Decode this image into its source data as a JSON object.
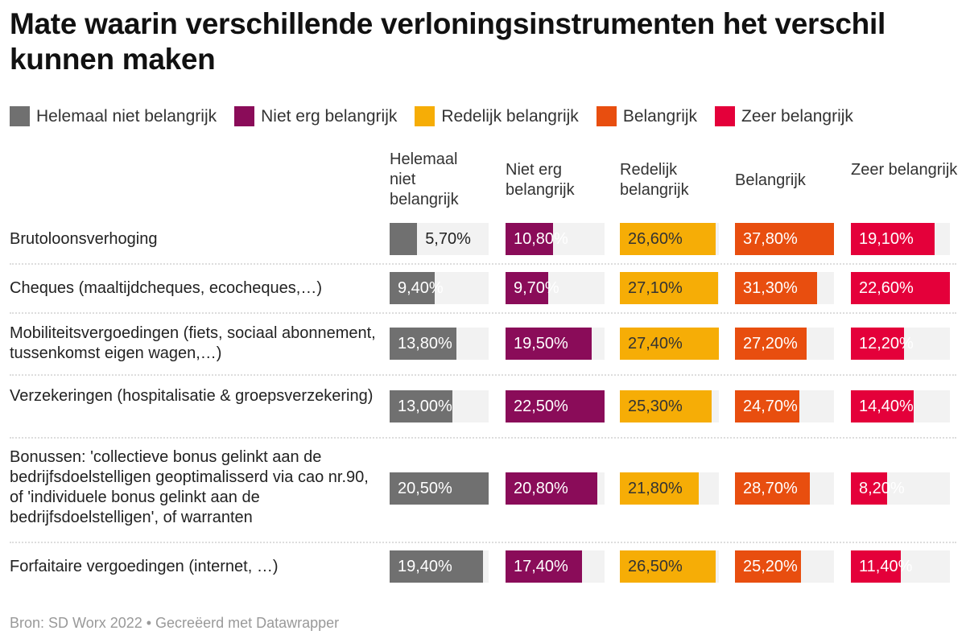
{
  "title": "Mate waarin verschillende verloningsinstrumenten het verschil kunnen maken",
  "legend": [
    {
      "label": "Helemaal niet belangrijk",
      "color": "#707070"
    },
    {
      "label": "Niet erg belangrijk",
      "color": "#8a0c59"
    },
    {
      "label": "Redelijk belangrijk",
      "color": "#f6ad06"
    },
    {
      "label": "Belangrijk",
      "color": "#e84e0f"
    },
    {
      "label": "Zeer belangrijk",
      "color": "#e4003a"
    }
  ],
  "chart_data": {
    "type": "table",
    "columns": [
      "Helemaal niet belangrijk",
      "Niet erg belangrijk",
      "Redelijk belangrijk",
      "Belangrijk",
      "Zeer belangrijk"
    ],
    "rows": [
      {
        "label": "Brutoloonsverhoging",
        "values": [
          5.7,
          10.8,
          26.6,
          37.8,
          19.1
        ],
        "texts": [
          "5,70%",
          "10,80%",
          "26,60%",
          "37,80%",
          "19,10%"
        ]
      },
      {
        "label": "Cheques (maaltijdcheques, ecocheques,…)",
        "values": [
          9.4,
          9.7,
          27.1,
          31.3,
          22.6
        ],
        "texts": [
          "9,40%",
          "9,70%",
          "27,10%",
          "31,30%",
          "22,60%"
        ]
      },
      {
        "label": "Mobiliteitsvergoedingen (fiets, sociaal abonnement, tussenkomst eigen wagen,…)",
        "values": [
          13.8,
          19.5,
          27.4,
          27.2,
          12.2
        ],
        "texts": [
          "13,80%",
          "19,50%",
          "27,40%",
          "27,20%",
          "12,20%"
        ]
      },
      {
        "label": "Verzekeringen (hospitalisatie & groepsverzekering)",
        "values": [
          13.0,
          22.5,
          25.3,
          24.7,
          14.4
        ],
        "texts": [
          "13,00%",
          "22,50%",
          "25,30%",
          "24,70%",
          "14,40%"
        ]
      },
      {
        "label": "Bonussen: 'collectieve bonus gelinkt aan de bedrijfsdoelstelligen geoptimalisserd via cao nr.90, of 'individuele bonus gelinkt aan de bedrijfsdoelstelligen', of warranten",
        "values": [
          20.5,
          20.8,
          21.8,
          28.7,
          8.2
        ],
        "texts": [
          "20,50%",
          "20,80%",
          "21,80%",
          "28,70%",
          "8,20%"
        ]
      },
      {
        "label": "Forfaitaire vergoedingen (internet, …)",
        "values": [
          19.4,
          17.4,
          26.5,
          25.2,
          11.4
        ],
        "texts": [
          "19,40%",
          "17,40%",
          "26,50%",
          "25,20%",
          "11,40%"
        ]
      }
    ]
  },
  "footer": "Bron: SD Worx 2022 • Gecreëerd met Datawrapper"
}
